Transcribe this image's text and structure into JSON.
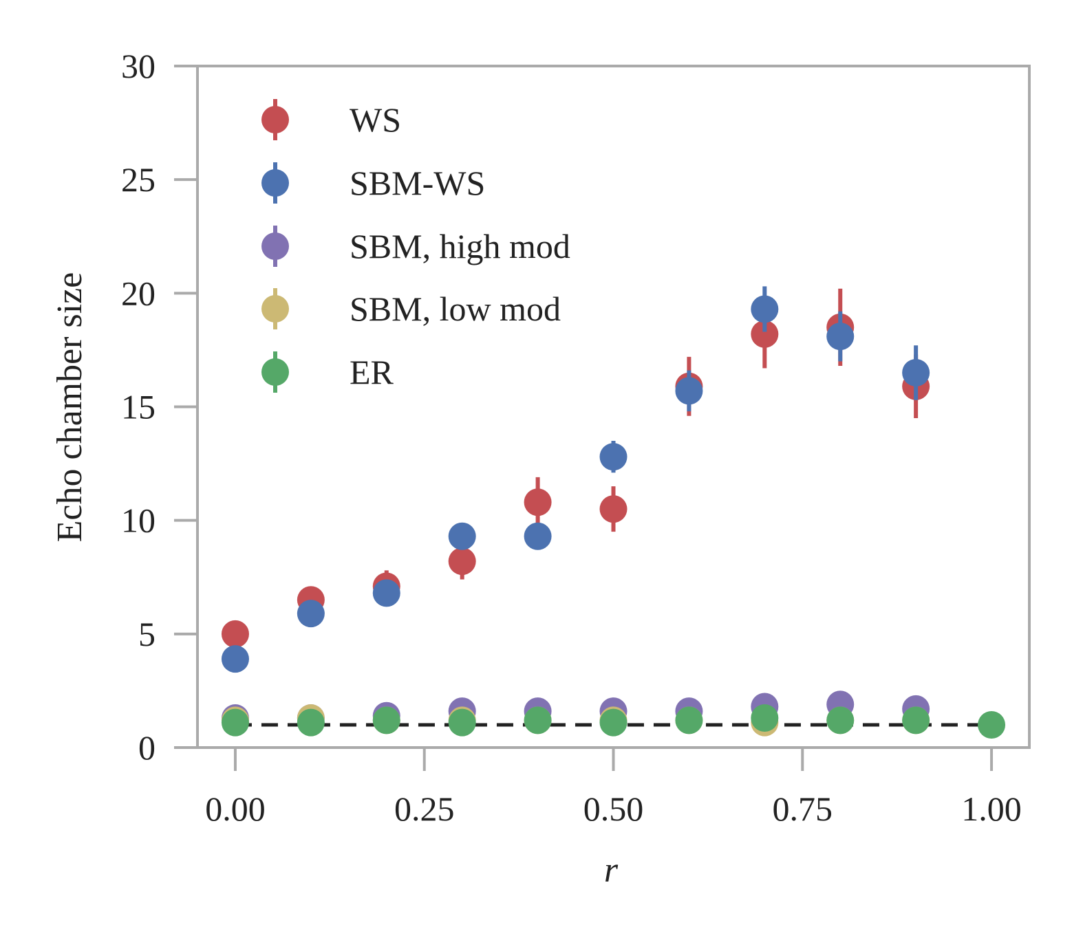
{
  "chart_data": {
    "type": "scatter",
    "xlabel": "r",
    "ylabel": "Echo chamber size",
    "xlim": [
      -0.05,
      1.05
    ],
    "ylim": [
      0,
      30
    ],
    "xticks": [
      "0.00",
      "0.25",
      "0.50",
      "0.75",
      "1.00"
    ],
    "xtick_values": [
      0,
      0.25,
      0.5,
      0.75,
      1.0
    ],
    "yticks": [
      "0",
      "5",
      "10",
      "15",
      "20",
      "25",
      "30"
    ],
    "ytick_values": [
      0,
      5,
      10,
      15,
      20,
      25,
      30
    ],
    "grid": false,
    "legend_position": "upper-left",
    "reference_line": {
      "y": 1,
      "style": "dashed",
      "color": "#222222"
    },
    "series": [
      {
        "name": "WS",
        "color": "#c44e52",
        "x": [
          0.0,
          0.1,
          0.2,
          0.3,
          0.4,
          0.5,
          0.6,
          0.7,
          0.8,
          0.9
        ],
        "y": [
          5.0,
          6.5,
          7.1,
          8.2,
          10.8,
          10.5,
          15.9,
          18.2,
          18.5,
          15.9
        ],
        "err": [
          0.3,
          0.6,
          0.7,
          0.8,
          1.1,
          1.0,
          1.3,
          1.5,
          1.7,
          1.4
        ]
      },
      {
        "name": "SBM-WS",
        "color": "#4c72b0",
        "x": [
          0.0,
          0.1,
          0.2,
          0.3,
          0.4,
          0.5,
          0.6,
          0.7,
          0.8,
          0.9
        ],
        "y": [
          3.9,
          5.9,
          6.8,
          9.3,
          9.3,
          12.8,
          15.7,
          19.3,
          18.1,
          16.5
        ],
        "err": [
          0.2,
          0.3,
          0.4,
          0.4,
          0.5,
          0.7,
          0.9,
          1.0,
          1.1,
          1.2
        ]
      },
      {
        "name": "SBM, high mod",
        "color": "#8172b2",
        "x": [
          0.0,
          0.1,
          0.2,
          0.3,
          0.4,
          0.5,
          0.6,
          0.7,
          0.8,
          0.9
        ],
        "y": [
          1.3,
          1.3,
          1.4,
          1.6,
          1.6,
          1.6,
          1.6,
          1.8,
          1.9,
          1.7
        ],
        "err": [
          0.05,
          0.05,
          0.1,
          0.1,
          0.1,
          0.1,
          0.1,
          0.1,
          0.1,
          0.1
        ]
      },
      {
        "name": "SBM, low mod",
        "color": "#ccb974",
        "x": [
          0.0,
          0.1,
          0.2,
          0.3,
          0.4,
          0.5,
          0.6,
          0.7,
          0.8,
          0.9
        ],
        "y": [
          1.2,
          1.3,
          1.2,
          1.2,
          1.2,
          1.2,
          1.2,
          1.1,
          1.2,
          1.2
        ],
        "err": [
          0.05,
          0.05,
          0.05,
          0.05,
          0.05,
          0.05,
          0.05,
          0.05,
          0.05,
          0.05
        ]
      },
      {
        "name": "ER",
        "color": "#55a868",
        "x": [
          0.0,
          0.1,
          0.2,
          0.3,
          0.4,
          0.5,
          0.6,
          0.7,
          0.8,
          0.9,
          1.0
        ],
        "y": [
          1.1,
          1.1,
          1.2,
          1.1,
          1.2,
          1.1,
          1.2,
          1.3,
          1.2,
          1.2,
          1.0
        ],
        "err": [
          0.05,
          0.05,
          0.05,
          0.05,
          0.05,
          0.05,
          0.05,
          0.05,
          0.05,
          0.05,
          0.05
        ]
      }
    ]
  }
}
